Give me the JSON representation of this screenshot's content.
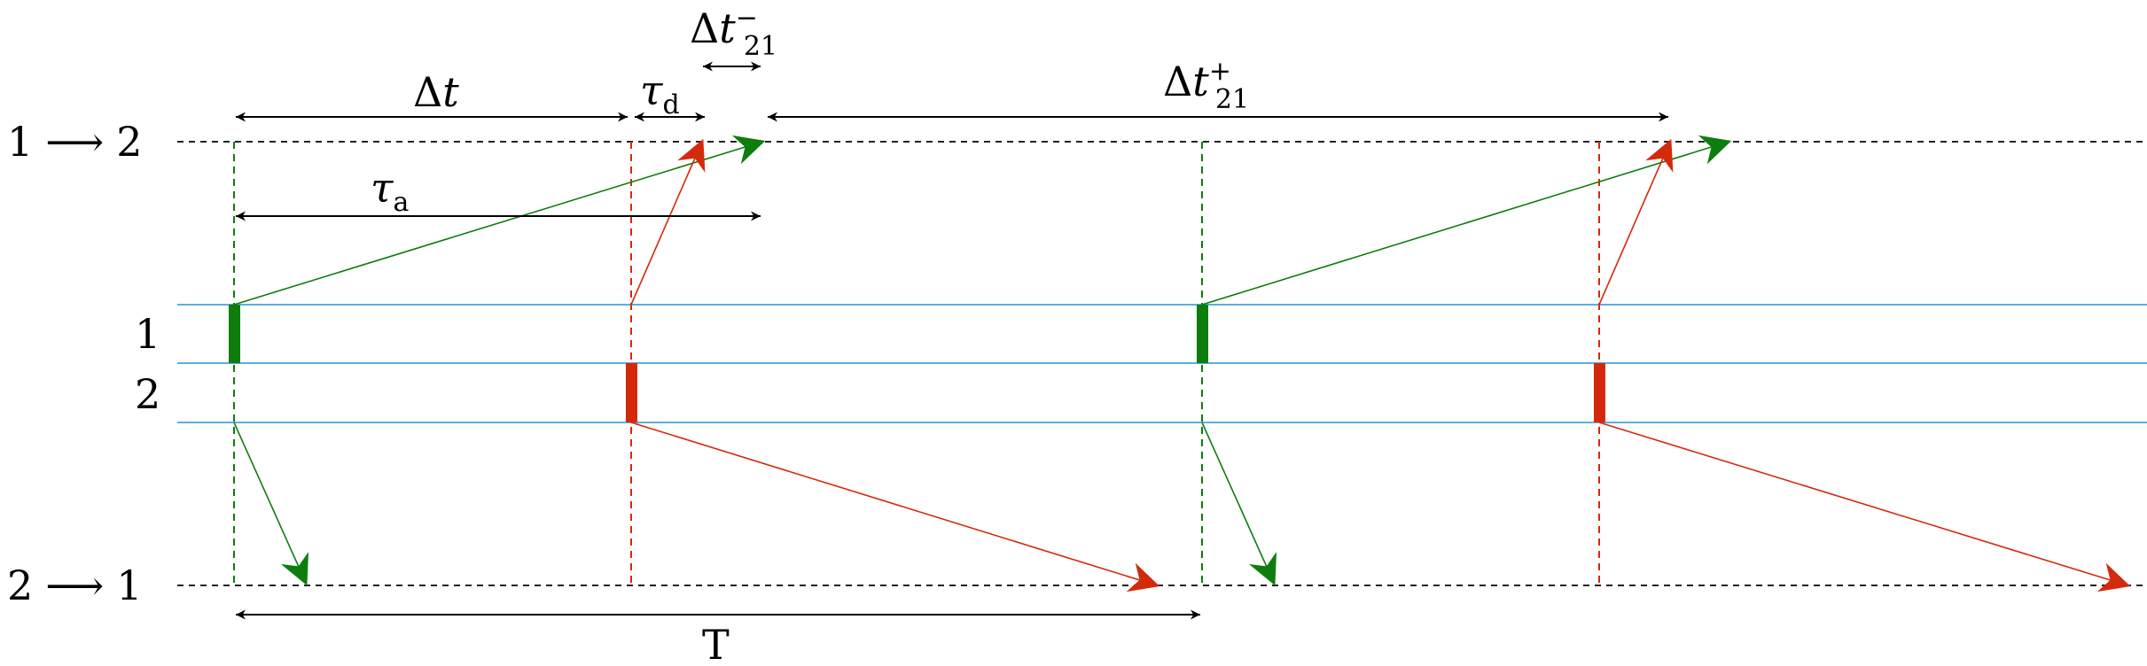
{
  "labels": {
    "row_top_from": "1",
    "row_top_to": "2",
    "row_bottom_from": "2",
    "row_bottom_to": "1",
    "row_1": "1",
    "row_2": "2",
    "arrow": "⟶",
    "delta_t_sym": "Δ",
    "delta_t_var": "t",
    "tau_sym": "τ",
    "tau_d_sub": "d",
    "tau_a_sub": "a",
    "dt21_sub": "21",
    "minus": "−",
    "plus": "+",
    "period": "T"
  },
  "colors": {
    "green": "#0d7d0d",
    "red": "#d42a0c",
    "blue_line": "#5aaee3",
    "dashed": "#222222",
    "black": "#000000"
  }
}
